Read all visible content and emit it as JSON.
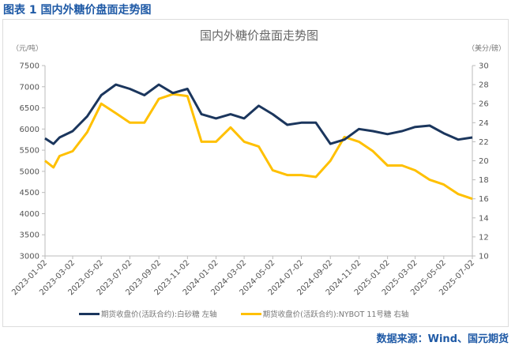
{
  "figure_label": "图表 1  国内外糖价盘面走势图",
  "source": "数据来源：Wind、国元期货",
  "chart_data": {
    "type": "line",
    "title": "国内外糖价盘面走势图",
    "y_left_unit": "（元/吨）",
    "y_right_unit": "（美分/磅）",
    "ylim_left": [
      3000,
      7500
    ],
    "ylim_right": [
      10,
      30
    ],
    "yticks_left": [
      "3000",
      "3500",
      "4000",
      "4500",
      "5000",
      "5500",
      "6000",
      "6500",
      "7000",
      "7500"
    ],
    "yticks_right": [
      "10",
      "12",
      "14",
      "16",
      "18",
      "20",
      "22",
      "24",
      "26",
      "28",
      "30"
    ],
    "xlim": [
      "2023-01-02",
      "2025-07-02"
    ],
    "xticks": [
      "2023-01-02",
      "2023-03-02",
      "2023-05-02",
      "2023-07-02",
      "2023-09-02",
      "2023-11-02",
      "2024-01-02",
      "2024-03-02",
      "2024-05-02",
      "2024-07-02",
      "2024-09-02",
      "2024-11-02",
      "2025-01-02",
      "2025-03-02",
      "2025-05-02",
      "2025-07-02"
    ],
    "grid": false,
    "legend_position": "bottom",
    "x": [
      "2023-01-02",
      "2023-01-20",
      "2023-02-02",
      "2023-03-02",
      "2023-04-02",
      "2023-05-02",
      "2023-06-02",
      "2023-07-02",
      "2023-08-02",
      "2023-09-02",
      "2023-10-02",
      "2023-11-02",
      "2023-12-02",
      "2024-01-02",
      "2024-02-02",
      "2024-03-02",
      "2024-04-02",
      "2024-05-02",
      "2024-06-02",
      "2024-07-02",
      "2024-08-02",
      "2024-09-02",
      "2024-10-02",
      "2024-11-02",
      "2024-12-02",
      "2025-01-02",
      "2025-02-02",
      "2025-03-02",
      "2025-04-02",
      "2025-05-02",
      "2025-06-02",
      "2025-07-02"
    ],
    "series": [
      {
        "name": "期货收盘价(活跃合约):白砂糖  左轴",
        "axis": "left",
        "color": "#1b365d",
        "values": [
          5780,
          5650,
          5800,
          5950,
          6300,
          6800,
          7050,
          6950,
          6800,
          7050,
          6850,
          6950,
          6350,
          6250,
          6350,
          6250,
          6550,
          6350,
          6100,
          6150,
          6150,
          5650,
          5750,
          6000,
          5950,
          5880,
          5950,
          6050,
          6080,
          5900,
          5750,
          5800
        ]
      },
      {
        "name": "期货收盘价(活跃合约):NYBOT 11号糖  右轴",
        "axis": "right",
        "color": "#ffc000",
        "values": [
          20.0,
          19.3,
          20.5,
          21.0,
          23.0,
          26.0,
          25.0,
          24.0,
          24.0,
          26.5,
          27.0,
          26.8,
          22.0,
          22.0,
          23.5,
          22.0,
          21.5,
          19.0,
          18.5,
          18.5,
          18.3,
          20.0,
          22.5,
          22.0,
          21.0,
          19.5,
          19.5,
          19.0,
          18.0,
          17.5,
          16.5,
          16.0
        ]
      }
    ]
  }
}
